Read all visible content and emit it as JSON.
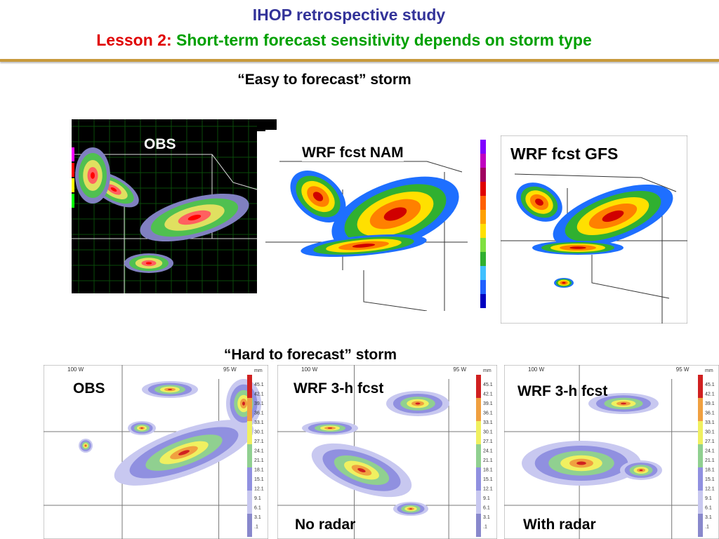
{
  "header": {
    "title": "IHOP retrospective study",
    "lesson_label": "Lesson 2:",
    "lesson_text": "Short-term forecast sensitivity depends on storm type"
  },
  "easy": {
    "heading": "“Easy to forecast” storm",
    "panels": [
      "OBS",
      "WRF fcst NAM",
      "WRF fcst GFS"
    ]
  },
  "hard": {
    "heading": "“Hard to forecast” storm",
    "panels": [
      "OBS",
      "WRF 3-h fcst",
      "WRF 3-h fcst"
    ],
    "captions": [
      "No radar",
      "With radar"
    ],
    "map_labels": [
      "100 W",
      "95 W"
    ],
    "colorbar": {
      "unit": "mm",
      "labels": [
        "45.1",
        "42.1",
        "39.1",
        "36.1",
        "33.1",
        "30.1",
        "27.1",
        "24.1",
        "21.1",
        "18.1",
        "15.1",
        "12.1",
        "9.1",
        "6.1",
        "3.1",
        ".1"
      ]
    }
  }
}
